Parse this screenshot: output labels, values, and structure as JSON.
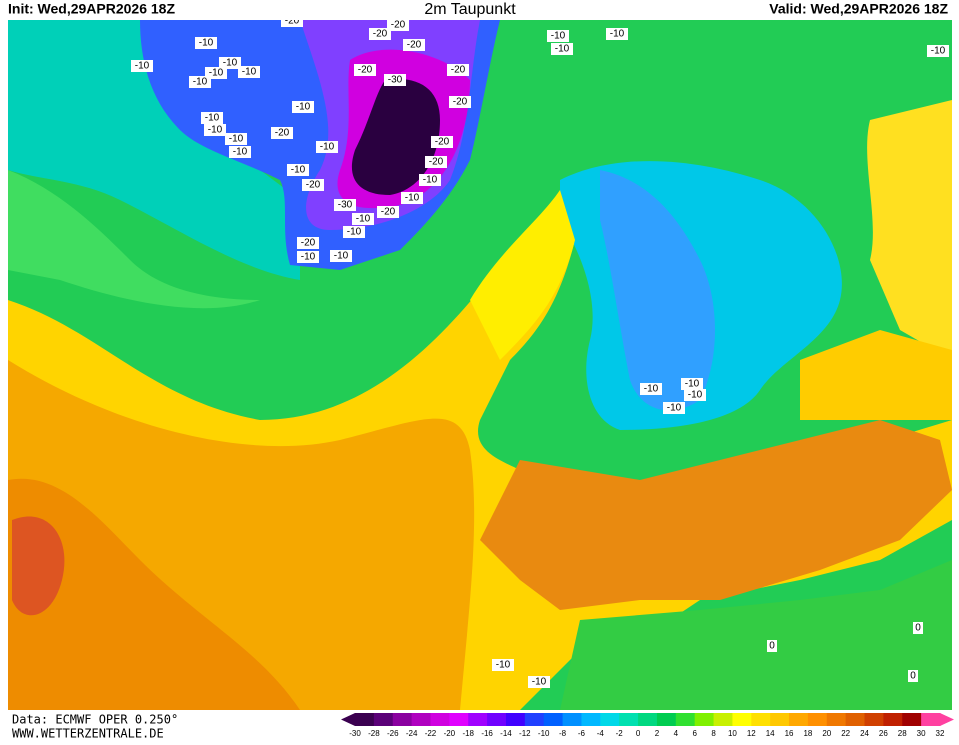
{
  "header": {
    "init": "Init: Wed,29APR2026 18Z",
    "title": "2m Taupunkt",
    "valid": "Valid: Wed,29APR2026 18Z"
  },
  "footer": {
    "source": "Data: ECMWF OPER 0.250°",
    "website": "WWW.WETTERZENTRALE.DE"
  },
  "colorbar": {
    "ticks": [
      -30,
      -28,
      -26,
      -24,
      -22,
      -20,
      -18,
      -16,
      -14,
      -12,
      -10,
      -8,
      -6,
      -4,
      -2,
      0,
      2,
      4,
      6,
      8,
      10,
      12,
      14,
      16,
      18,
      20,
      22,
      24,
      26,
      28,
      30,
      32
    ],
    "colors": [
      "#3a0050",
      "#5a0078",
      "#8a00a0",
      "#b000c0",
      "#d000e0",
      "#e000ff",
      "#a000ff",
      "#7000ff",
      "#4000ff",
      "#2040ff",
      "#0060ff",
      "#0090ff",
      "#00b8ff",
      "#00d8e8",
      "#00e0b0",
      "#00d880",
      "#00cc50",
      "#30e030",
      "#80f000",
      "#c8f000",
      "#ffff00",
      "#ffe000",
      "#ffc800",
      "#ffa800",
      "#ff9000",
      "#f07800",
      "#e06000",
      "#d04000",
      "#c02000",
      "#a00000",
      "#ff40a0"
    ]
  },
  "contour_labels": [
    "-20",
    "-10",
    "-10",
    "-10",
    "-10",
    "-10",
    "-10",
    "-20",
    "-20",
    "-20",
    "-30",
    "-20",
    "-20",
    "-10",
    "-10",
    "-10",
    "-10",
    "-20",
    "-10",
    "-10",
    "-20",
    "-20",
    "-10",
    "-10",
    "-20",
    "-30",
    "-20",
    "-10",
    "-10",
    "-10",
    "-20",
    "-10",
    "-10",
    "-10",
    "-10",
    "-10",
    "-10",
    "-10",
    "-10",
    "-10",
    "-10",
    "0",
    "0",
    "0",
    "-10",
    "-10",
    "-20"
  ]
}
